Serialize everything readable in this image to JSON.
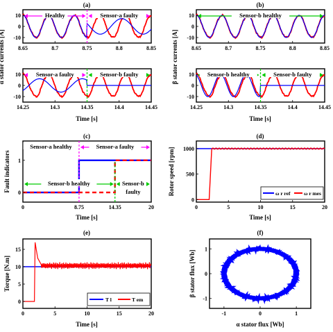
{
  "chart_data": [
    {
      "id": "a",
      "panel_label": "(a)",
      "type": "line",
      "ylabel": "α stator currents [A]",
      "xlabel": "Time [s]",
      "subplots": [
        {
          "xlim": [
            8.65,
            8.85
          ],
          "ylim": [
            -15,
            15
          ],
          "xticks": [
            "8.65",
            "8.7",
            "8.75",
            "8.8",
            "8.85"
          ],
          "yticks": [
            "10",
            "0",
            "-10"
          ],
          "annotations": [
            {
              "text": "Healthy",
              "color": "#ff00ff"
            },
            {
              "text": "Sensor-a faulty",
              "color": "#ff00ff"
            }
          ],
          "switch_time": 8.75,
          "series": [
            {
              "color": "#ff0000",
              "amplitude": 10,
              "frequency_hz": 25
            },
            {
              "color": "#0000ff",
              "amplitude_before": 10,
              "amplitude_after": 7,
              "frequency_hz": 25
            }
          ]
        },
        {
          "xlim": [
            14.25,
            14.45
          ],
          "ylim": [
            -15,
            15
          ],
          "xticks": [
            "14.25",
            "14.3",
            "14.35",
            "14.4",
            "14.45"
          ],
          "yticks": [
            "10",
            "0",
            "-10"
          ],
          "annotations": [
            {
              "text": "Sensor-a faulty",
              "color": "#ff00ff"
            },
            {
              "text": "Sensor-b faulty",
              "color": "#00cc00"
            }
          ],
          "switch_time": 14.35,
          "series": [
            {
              "color": "#ff0000",
              "amplitude": 10,
              "frequency_hz": 25
            },
            {
              "color": "#0000ff",
              "amplitude_before": 6,
              "amplitude_after": 0,
              "frequency_hz": 25
            }
          ]
        }
      ]
    },
    {
      "id": "b",
      "panel_label": "(b)",
      "type": "line",
      "ylabel": "β stator currents [A]",
      "xlabel": "Time [s]",
      "subplots": [
        {
          "xlim": [
            8.65,
            8.85
          ],
          "ylim": [
            -15,
            15
          ],
          "xticks": [
            "8.65",
            "8.7",
            "8.75",
            "8.8",
            "8.85"
          ],
          "yticks": [
            "10",
            "0",
            "-10"
          ],
          "annotations": [
            {
              "text": "Sensor-b healthy",
              "color": "#00cc00"
            }
          ],
          "series": [
            {
              "color": "#ff0000",
              "amplitude": 10,
              "frequency_hz": 25
            },
            {
              "color": "#0000ff",
              "amplitude": 10,
              "frequency_hz": 25
            }
          ]
        },
        {
          "xlim": [
            14.25,
            14.45
          ],
          "ylim": [
            -15,
            15
          ],
          "xticks": [
            "14.25",
            "14.3",
            "14.35",
            "14.4",
            "14.45"
          ],
          "yticks": [
            "10",
            "0",
            "-10"
          ],
          "annotations": [
            {
              "text": "Sensor-b healthy",
              "color": "#00cc00"
            },
            {
              "text": "Sensor-b faulty",
              "color": "#00cc00"
            }
          ],
          "switch_time": 14.35,
          "series": [
            {
              "color": "#ff0000",
              "amplitude": 10,
              "frequency_hz": 25
            },
            {
              "color": "#0000ff",
              "amplitude_before": 10,
              "amplitude_after": 0,
              "frequency_hz": 25
            }
          ]
        }
      ]
    },
    {
      "id": "c",
      "panel_label": "(c)",
      "type": "line",
      "ylabel": "Fault indicators",
      "xlabel": "Time [s]",
      "xlim": [
        0,
        20
      ],
      "ylim": [
        -0.3,
        1.6
      ],
      "xticks": [
        "0",
        "8.75",
        "14.35",
        "20"
      ],
      "yticks": [
        "1",
        "0"
      ],
      "annotations": [
        {
          "text": "Sensor-a healthy",
          "color": "#ff00ff"
        },
        {
          "text": "Sensor-a faulty",
          "color": "#ff00ff"
        },
        {
          "text": "Sensor-b healthy",
          "color": "#00cc00"
        },
        {
          "text": "Sensor-b",
          "color": "#00cc00"
        },
        {
          "text": "faulty",
          "color": "#00cc00"
        }
      ],
      "series": [
        {
          "color": "#0000ff",
          "points": [
            [
              0,
              0
            ],
            [
              8.75,
              0
            ],
            [
              8.75,
              1
            ],
            [
              20,
              1
            ]
          ]
        },
        {
          "color": "#ff0000",
          "points": [
            [
              0,
              0
            ],
            [
              14.35,
              0
            ],
            [
              14.35,
              1
            ],
            [
              20,
              1
            ]
          ]
        }
      ]
    },
    {
      "id": "d",
      "panel_label": "(d)",
      "type": "line",
      "ylabel": "Rotor speed [rpm]",
      "xlabel": "Time [s]",
      "xlim": [
        0,
        20
      ],
      "ylim": [
        -50,
        1150
      ],
      "xticks": [
        "0",
        "5",
        "10",
        "15",
        "20"
      ],
      "yticks": [
        "1000",
        "500",
        "0"
      ],
      "legend_position": "bottom-right",
      "series": [
        {
          "name": "ω r ref",
          "color": "#0000ff",
          "points": [
            [
              0,
              1000
            ],
            [
              20,
              1000
            ]
          ]
        },
        {
          "name": "ω r mes",
          "color": "#ff0000",
          "points": [
            [
              0,
              0
            ],
            [
              2,
              0
            ],
            [
              2.4,
              1000
            ],
            [
              20,
              1000
            ]
          ]
        }
      ]
    },
    {
      "id": "e",
      "panel_label": "(e)",
      "type": "line",
      "ylabel": "Torque [N.m]",
      "xlabel": "Time [s]",
      "xlim": [
        0,
        20
      ],
      "ylim": [
        -2,
        18
      ],
      "xticks": [
        "0",
        "5",
        "10",
        "15",
        "20"
      ],
      "yticks": [
        "15",
        "10",
        "5",
        "0"
      ],
      "legend_position": "bottom-right",
      "series": [
        {
          "name": "T l",
          "color": "#0000ff",
          "points": [
            [
              0,
              10
            ],
            [
              20,
              10
            ]
          ]
        },
        {
          "name": "T em",
          "color": "#ff0000",
          "points": [
            [
              0,
              0
            ],
            [
              1.8,
              0
            ],
            [
              1.9,
              17
            ],
            [
              2.3,
              12.5
            ],
            [
              2.8,
              10.5
            ],
            [
              20,
              10.3
            ]
          ]
        }
      ]
    },
    {
      "id": "f",
      "panel_label": "(f)",
      "type": "scatter",
      "ylabel": "β stator flux [Wb]",
      "xlabel": "α stator flux [Wb]",
      "xlim": [
        -1.4,
        1.4
      ],
      "ylim": [
        -1.4,
        1.4
      ],
      "xticks": [
        "-1",
        "0",
        "1"
      ],
      "yticks": [
        "1",
        "0",
        "-1"
      ],
      "series": [
        {
          "color": "#0000ff",
          "shape": "circle",
          "radius": 1.0
        }
      ]
    }
  ]
}
